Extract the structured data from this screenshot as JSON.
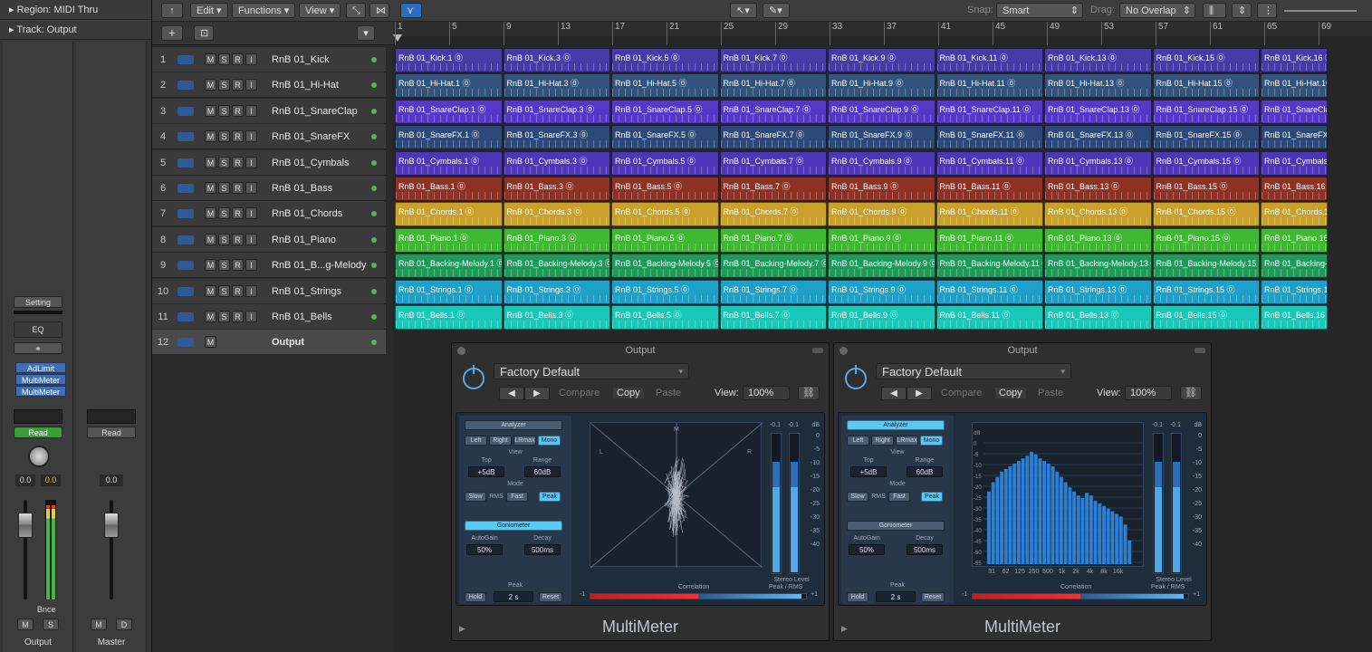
{
  "inspector": {
    "region_label": "Region: MIDI Thru",
    "track_label": "Track: Output",
    "strip1": {
      "setting": "Setting",
      "eq": "EQ",
      "plugins": [
        "AdLimit",
        "MultiMeter",
        "MultiMeter"
      ],
      "automation": "Read",
      "vol_left": "0.0",
      "vol_right": "0.0",
      "bounce": "Bnce",
      "mute": "M",
      "solo": "S",
      "name": "Output"
    },
    "strip2": {
      "automation": "Read",
      "vol": "0.0",
      "mute": "M",
      "dim": "D",
      "name": "Master"
    }
  },
  "toolbar": {
    "edit": "Edit",
    "functions": "Functions",
    "view": "View",
    "snap_label": "Snap:",
    "snap_value": "Smart",
    "drag_label": "Drag:",
    "drag_value": "No Overlap"
  },
  "ruler": [
    "1",
    "5",
    "9",
    "13",
    "17",
    "21",
    "25",
    "29",
    "33",
    "37",
    "41",
    "45",
    "49",
    "53",
    "57",
    "61",
    "65",
    "69"
  ],
  "tracks": [
    {
      "num": "1",
      "name": "RnB 01_Kick",
      "prefix": "RnB 01_Kick.",
      "color": "#4a3aa8"
    },
    {
      "num": "2",
      "name": "RnB 01_Hi-Hat",
      "prefix": "RnB 01_Hi-Hat.",
      "color": "#33527c"
    },
    {
      "num": "3",
      "name": "RnB 01_SnareClap",
      "prefix": "RnB 01_SnareClap.",
      "color": "#5538c8"
    },
    {
      "num": "4",
      "name": "RnB 01_SnareFX",
      "prefix": "RnB 01_SnareFX.",
      "color": "#2e4878"
    },
    {
      "num": "5",
      "name": "RnB 01_Cymbals",
      "prefix": "RnB 01_Cymbals.",
      "color": "#4e36b8"
    },
    {
      "num": "6",
      "name": "RnB 01_Bass",
      "prefix": "RnB 01_Bass.",
      "color": "#8e3226"
    },
    {
      "num": "7",
      "name": "RnB 01_Chords",
      "prefix": "RnB 01_Chords.",
      "color": "#c9a12a"
    },
    {
      "num": "8",
      "name": "RnB 01_Piano",
      "prefix": "RnB 01_Piano.",
      "color": "#3fb832"
    },
    {
      "num": "9",
      "name": "RnB 01_B...g-Melody",
      "prefix": "RnB 01_Backing-Melody.",
      "color": "#1f9a5a"
    },
    {
      "num": "10",
      "name": "RnB 01_Strings",
      "prefix": "RnB 01_Strings.",
      "color": "#1ea0c8"
    },
    {
      "num": "11",
      "name": "RnB 01_Bells",
      "prefix": "RnB 01_Bells.",
      "color": "#19c8b8"
    },
    {
      "num": "12",
      "name": "Output",
      "prefix": "",
      "color": ""
    }
  ],
  "region_numbers": [
    "1",
    "3",
    "5",
    "7",
    "9",
    "11",
    "13",
    "15",
    "16"
  ],
  "plugins": [
    {
      "title": "Output",
      "preset": "Factory Default",
      "compare": "Compare",
      "copy": "Copy",
      "paste": "Paste",
      "view_label": "View:",
      "zoom": "100%",
      "analyzer": "Analyzer",
      "analyzer_on": false,
      "ch_buttons": [
        "Left",
        "Right",
        "LRmax",
        "Mono"
      ],
      "view_section": "View",
      "top_label": "Top",
      "top_value": "+5dB",
      "range_label": "Range",
      "range_value": "60dB",
      "mode_label": "Mode",
      "slow": "Slow",
      "rms": "RMS",
      "fast": "Fast",
      "peak_btn": "Peak",
      "goniometer": "Goniometer",
      "gonio_on": true,
      "autogain_label": "AutoGain",
      "autogain_value": "50%",
      "decay_label": "Decay",
      "decay_value": "500ms",
      "peak_label": "Peak",
      "hold": "Hold",
      "hold_value": "2 s",
      "reset": "Reset",
      "display": "goniometer",
      "correlation": "Correlation",
      "level_label": "Stereo Level",
      "level_mode": "Peak / RMS",
      "footer": "MultiMeter"
    },
    {
      "title": "Output",
      "preset": "Factory Default",
      "compare": "Compare",
      "copy": "Copy",
      "paste": "Paste",
      "view_label": "View:",
      "zoom": "100%",
      "analyzer": "Analyzer",
      "analyzer_on": true,
      "ch_buttons": [
        "Left",
        "Right",
        "LRmax",
        "Mono"
      ],
      "view_section": "View",
      "top_label": "Top",
      "top_value": "+5dB",
      "range_label": "Range",
      "range_value": "60dB",
      "mode_label": "Mode",
      "slow": "Slow",
      "rms": "RMS",
      "fast": "Fast",
      "peak_btn": "Peak",
      "goniometer": "Goniometer",
      "gonio_on": false,
      "autogain_label": "AutoGain",
      "autogain_value": "50%",
      "decay_label": "Decay",
      "decay_value": "500ms",
      "peak_label": "Peak",
      "hold": "Hold",
      "hold_value": "2 s",
      "reset": "Reset",
      "display": "analyzer",
      "freq_labels": [
        "31",
        "62",
        "125",
        "250",
        "500",
        "1k",
        "2k",
        "4k",
        "8k",
        "16k"
      ],
      "db_labels": [
        "dB",
        "0",
        "-5",
        "-10",
        "-15",
        "-20",
        "-25",
        "-30",
        "-35",
        "-40",
        "-45",
        "-50",
        "-55"
      ],
      "spectrum": [
        0.55,
        0.62,
        0.66,
        0.7,
        0.72,
        0.74,
        0.76,
        0.78,
        0.8,
        0.82,
        0.85,
        0.83,
        0.8,
        0.78,
        0.76,
        0.74,
        0.7,
        0.66,
        0.62,
        0.58,
        0.55,
        0.52,
        0.5,
        0.54,
        0.52,
        0.48,
        0.46,
        0.44,
        0.42,
        0.4,
        0.38,
        0.36,
        0.3,
        0.18
      ],
      "correlation": "Correlation",
      "level_label": "Stereo Level",
      "level_mode": "Peak / RMS",
      "footer": "MultiMeter"
    }
  ]
}
